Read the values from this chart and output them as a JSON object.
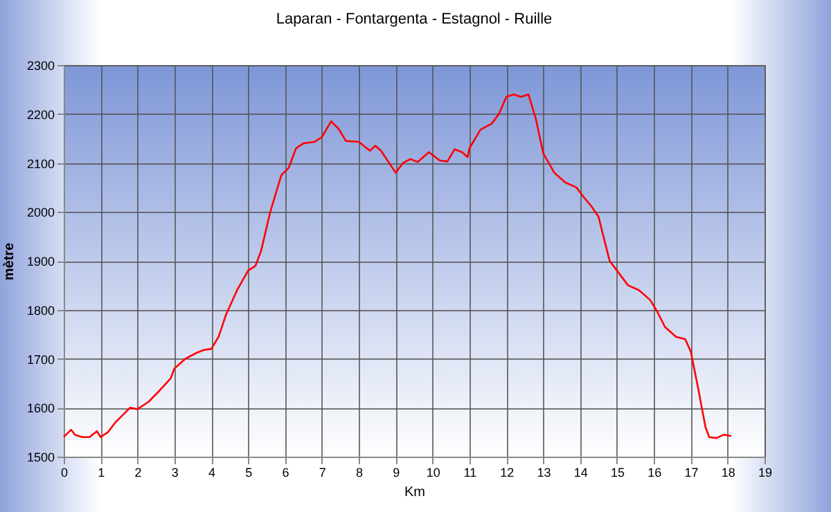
{
  "chart_data": {
    "type": "line",
    "title": "Laparan - Fontargenta - Estagnol - Ruille",
    "xlabel": "Km",
    "ylabel": "mètre",
    "series": [
      {
        "color": "#ff0000",
        "x": [
          0,
          0.2,
          0.3,
          0.5,
          0.7,
          0.9,
          1.0,
          1.2,
          1.4,
          1.6,
          1.8,
          2.0,
          2.3,
          2.6,
          2.9,
          3.0,
          3.3,
          3.6,
          3.8,
          4.0,
          4.2,
          4.4,
          4.7,
          5.0,
          5.2,
          5.35,
          5.6,
          5.9,
          6.1,
          6.3,
          6.5,
          6.8,
          7.0,
          7.25,
          7.45,
          7.65,
          8.0,
          8.3,
          8.45,
          8.6,
          9.0,
          9.2,
          9.4,
          9.6,
          9.9,
          10.2,
          10.4,
          10.6,
          10.8,
          10.95,
          11.0,
          11.3,
          11.6,
          11.8,
          12.0,
          12.2,
          12.4,
          12.6,
          12.8,
          13.0,
          13.3,
          13.6,
          13.9,
          14.1,
          14.3,
          14.5,
          14.8,
          15.0,
          15.3,
          15.6,
          15.9,
          16.1,
          16.3,
          16.6,
          16.85,
          17.0,
          17.2,
          17.4,
          17.5,
          17.7,
          17.9,
          18.1
        ],
        "values": [
          1540,
          1555,
          1545,
          1540,
          1540,
          1552,
          1540,
          1550,
          1570,
          1585,
          1600,
          1597,
          1612,
          1635,
          1660,
          1680,
          1700,
          1712,
          1718,
          1720,
          1745,
          1790,
          1840,
          1880,
          1890,
          1920,
          2000,
          2075,
          2090,
          2130,
          2140,
          2143,
          2153,
          2185,
          2170,
          2145,
          2143,
          2125,
          2135,
          2125,
          2080,
          2100,
          2108,
          2102,
          2122,
          2105,
          2103,
          2128,
          2122,
          2112,
          2130,
          2168,
          2180,
          2200,
          2235,
          2240,
          2235,
          2240,
          2190,
          2120,
          2080,
          2060,
          2050,
          2030,
          2012,
          1990,
          1900,
          1880,
          1850,
          1840,
          1820,
          1795,
          1765,
          1745,
          1740,
          1715,
          1640,
          1560,
          1540,
          1538,
          1545,
          1542
        ]
      }
    ],
    "xlim": [
      0,
      19
    ],
    "xticks": [
      0,
      1,
      2,
      3,
      4,
      5,
      6,
      7,
      8,
      9,
      10,
      11,
      12,
      13,
      14,
      15,
      16,
      17,
      18,
      19
    ],
    "ylim": [
      1500,
      2300
    ],
    "yticks": [
      1500,
      1600,
      1700,
      1800,
      1900,
      2000,
      2100,
      2200,
      2300
    ],
    "grid": true,
    "marker": "none",
    "line_style": "solid"
  }
}
